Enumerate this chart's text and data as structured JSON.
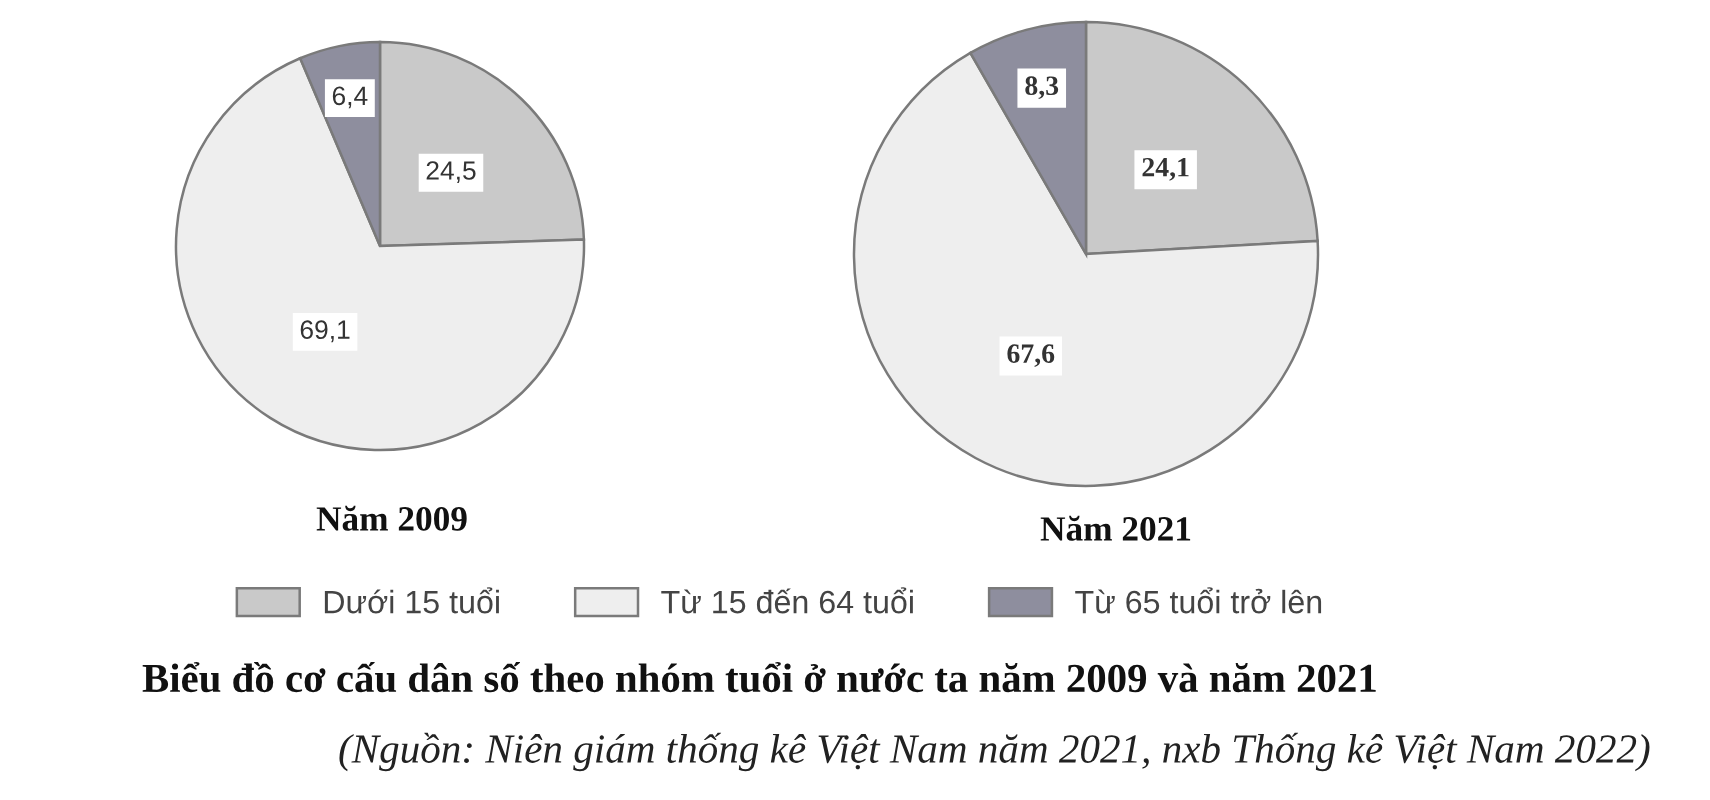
{
  "chart_data": [
    {
      "type": "pie",
      "title": "Năm 2009",
      "categories": [
        "Dưới 15 tuổi",
        "Từ 15 đến 64 tuổi",
        "Từ 65 tuổi trở lên"
      ],
      "values": [
        24.5,
        69.1,
        6.4
      ],
      "colors": [
        "#c9c9c9",
        "#eeeeee",
        "#8e8e9e"
      ],
      "value_labels": [
        "24,5",
        "69,1",
        "6,4"
      ],
      "legend": "bottom"
    },
    {
      "type": "pie",
      "title": "Năm 2021",
      "categories": [
        null,
        null,
        null
      ],
      "values": [
        24.1,
        67.6,
        8.3
      ],
      "colors": [
        "#c9c9c9",
        "#eeeeee",
        "#8e8e9e"
      ],
      "value_labels": [
        "24,1",
        "67,6",
        "8,3"
      ]
    },
    {
      "type": "other",
      "title": "Biểu đồ cơ cấu dân số theo nhóm tuổi ở nước ta năm 2009 và năm 2021",
      "annotations": [
        "(Nguồn: Niên giám thống kê Việt Nam năm 2021, nxb Thống kê Việt Nam 2022)"
      ]
    }
  ]
}
